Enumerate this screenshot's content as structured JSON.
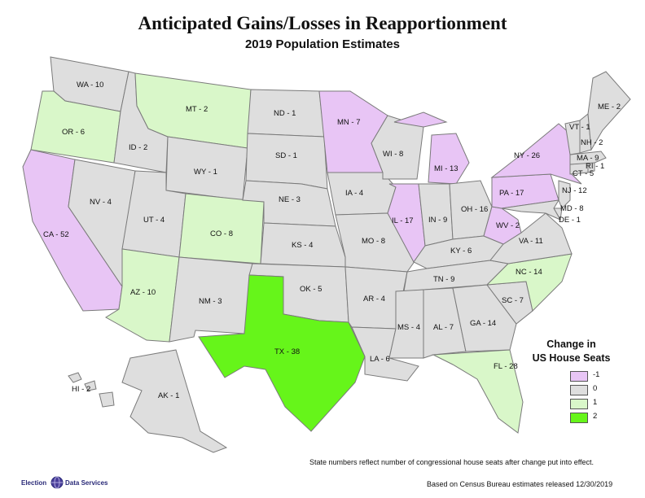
{
  "title": "Anticipated Gains/Losses in Reapportionment",
  "subtitle": "2019 Population Estimates",
  "colors": {
    "-1": "#e8c5f5",
    "0": "#dedede",
    "1": "#d9f7c9",
    "2": "#66f51a"
  },
  "legend": {
    "title_line1": "Change in",
    "title_line2": "US House Seats",
    "items": [
      {
        "label": "-1",
        "change": -1
      },
      {
        "label": "0",
        "change": 0
      },
      {
        "label": "1",
        "change": 1
      },
      {
        "label": "2",
        "change": 2
      }
    ]
  },
  "states": {
    "WA": {
      "label": "WA - 10",
      "change": 0
    },
    "OR": {
      "label": "OR - 6",
      "change": 1
    },
    "CA": {
      "label": "CA - 52",
      "change": -1
    },
    "ID": {
      "label": "ID - 2",
      "change": 0
    },
    "NV": {
      "label": "NV - 4",
      "change": 0
    },
    "MT": {
      "label": "MT - 2",
      "change": 1
    },
    "WY": {
      "label": "WY - 1",
      "change": 0
    },
    "UT": {
      "label": "UT - 4",
      "change": 0
    },
    "AZ": {
      "label": "AZ - 10",
      "change": 1
    },
    "CO": {
      "label": "CO - 8",
      "change": 1
    },
    "NM": {
      "label": "NM - 3",
      "change": 0
    },
    "ND": {
      "label": "ND - 1",
      "change": 0
    },
    "SD": {
      "label": "SD - 1",
      "change": 0
    },
    "NE": {
      "label": "NE - 3",
      "change": 0
    },
    "KS": {
      "label": "KS - 4",
      "change": 0
    },
    "OK": {
      "label": "OK - 5",
      "change": 0
    },
    "TX": {
      "label": "TX - 38",
      "change": 2
    },
    "MN": {
      "label": "MN - 7",
      "change": -1
    },
    "IA": {
      "label": "IA - 4",
      "change": 0
    },
    "MO": {
      "label": "MO - 8",
      "change": 0
    },
    "AR": {
      "label": "AR - 4",
      "change": 0
    },
    "LA": {
      "label": "LA - 6",
      "change": 0
    },
    "WI": {
      "label": "WI - 8",
      "change": 0
    },
    "IL": {
      "label": "IL - 17",
      "change": -1
    },
    "MI": {
      "label": "MI - 13",
      "change": -1
    },
    "IN": {
      "label": "IN - 9",
      "change": 0
    },
    "OH": {
      "label": "OH - 16",
      "change": 0
    },
    "KY": {
      "label": "KY - 6",
      "change": 0
    },
    "TN": {
      "label": "TN - 9",
      "change": 0
    },
    "MS": {
      "label": "MS - 4",
      "change": 0
    },
    "AL": {
      "label": "AL - 7",
      "change": 0
    },
    "GA": {
      "label": "GA - 14",
      "change": 0
    },
    "FL": {
      "label": "FL - 28",
      "change": 1
    },
    "SC": {
      "label": "SC - 7",
      "change": 0
    },
    "NC": {
      "label": "NC - 14",
      "change": 1
    },
    "VA": {
      "label": "VA - 11",
      "change": 0
    },
    "WV": {
      "label": "WV - 2",
      "change": -1
    },
    "PA": {
      "label": "PA - 17",
      "change": -1
    },
    "NY": {
      "label": "NY - 26",
      "change": -1
    },
    "NJ": {
      "label": "NJ - 12",
      "change": 0
    },
    "DE": {
      "label": "DE - 1",
      "change": 0
    },
    "MD": {
      "label": "MD - 8",
      "change": 0
    },
    "CT": {
      "label": "CT - 5",
      "change": 0
    },
    "RI": {
      "label": "RI - 1",
      "change": 0
    },
    "MA": {
      "label": "MA - 9",
      "change": 0
    },
    "VT": {
      "label": "VT - 1",
      "change": 0
    },
    "NH": {
      "label": "NH - 2",
      "change": 0
    },
    "ME": {
      "label": "ME - 2",
      "change": 0
    },
    "AK": {
      "label": "AK - 1",
      "change": 0
    },
    "HI": {
      "label": "HI - 2",
      "change": 0
    }
  },
  "note": "State numbers reflect number of congressional house seats after change put into effect.",
  "source": "Based on Census Bureau estimates released 12/30/2019",
  "logo": {
    "left": "Election",
    "right": "Data Services"
  }
}
